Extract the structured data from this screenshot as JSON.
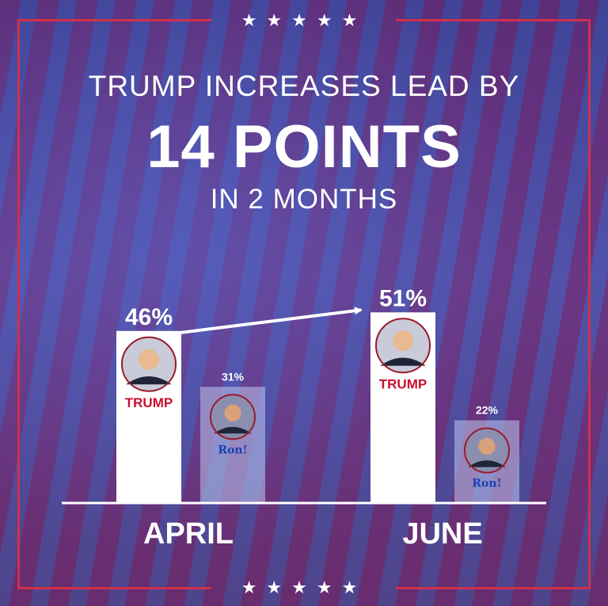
{
  "headline": {
    "line1": "TRUMP INCREASES LEAD BY",
    "line2": "14 POINTS",
    "line3": "IN 2 MONTHS"
  },
  "decor": {
    "stars": "★★★★★"
  },
  "colors": {
    "frame": "#d0304a",
    "trump_label": "#c8102e",
    "ron_label": "#1a3fb0"
  },
  "chart_data": {
    "type": "bar",
    "categories": [
      "APRIL",
      "JUNE"
    ],
    "series": [
      {
        "name": "TRUMP",
        "values": [
          46,
          51
        ],
        "labels": [
          "46%",
          "51%"
        ]
      },
      {
        "name": "Ron!",
        "values": [
          31,
          22
        ],
        "labels": [
          "31%",
          "22%"
        ]
      }
    ],
    "annotation": "arrow from APRIL TRUMP bar to JUNE TRUMP bar",
    "grid": false,
    "legend": "none"
  }
}
